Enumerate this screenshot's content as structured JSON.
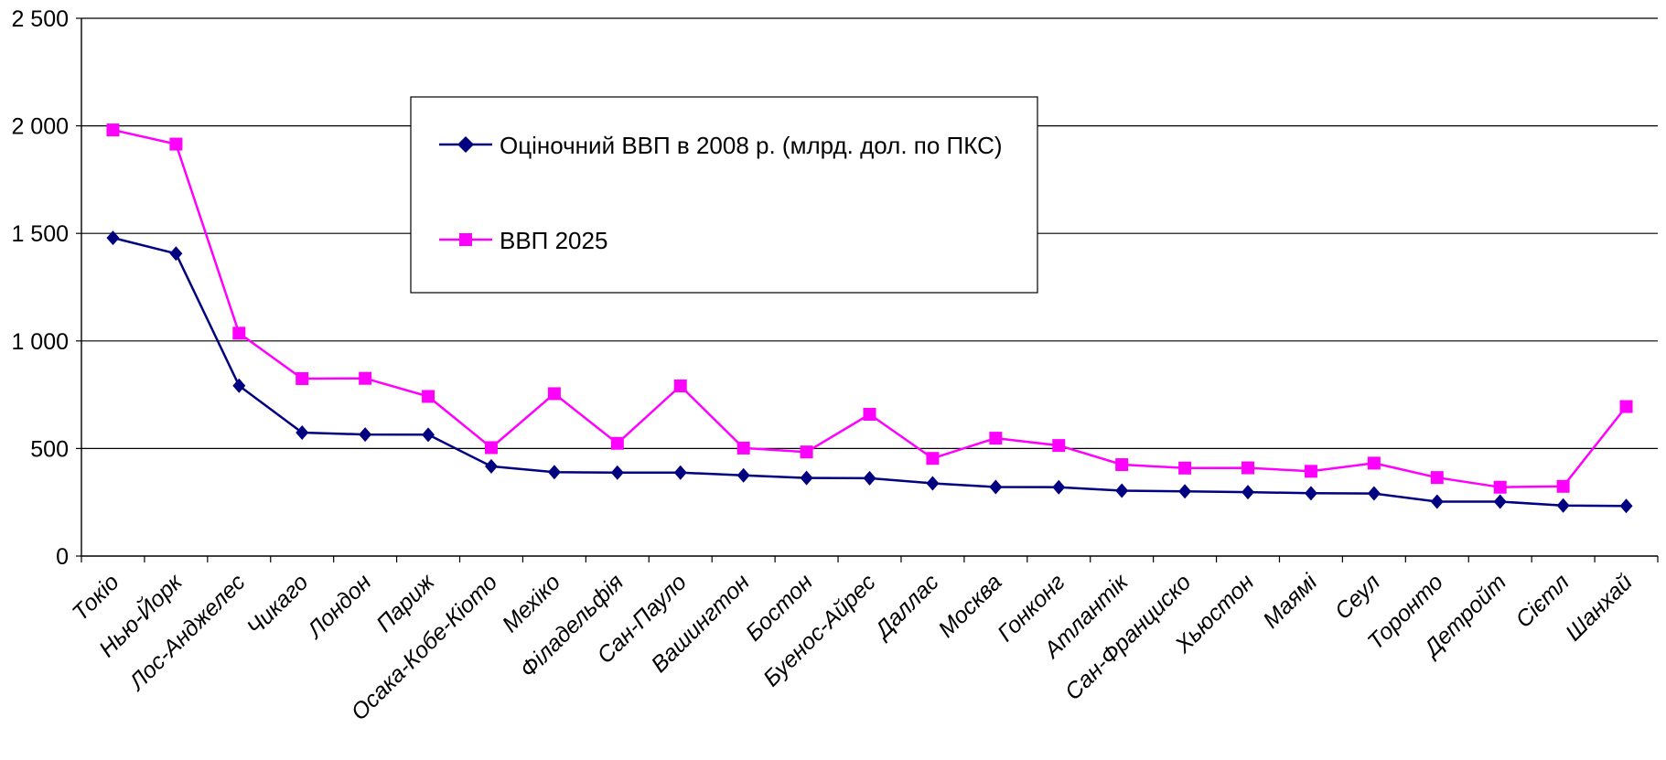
{
  "chart_data": {
    "type": "line",
    "categories": [
      "Токіо",
      "Нью-Йорк",
      "Лос-Анджелес",
      "Чикаго",
      "Лондон",
      "Париж",
      "Осака-Кобе-Кіото",
      "Мехіко",
      "Філадельфія",
      "Сан-Пауло",
      "Вашингтон",
      "Бостон",
      "Буенос-Айрес",
      "Даллас",
      "Москва",
      "Гонконг",
      "Атлантік",
      "Сан-Франциско",
      "Хьюстон",
      "Маямі",
      "Сеул",
      "Торонто",
      "Детройт",
      "Сієтл",
      "Шанхай"
    ],
    "series": [
      {
        "name": "Оціночний ВВП в 2008 р. (млрд. дол. по ПКС)",
        "color": "#000080",
        "marker": "diamond",
        "values": [
          1479,
          1406,
          792,
          574,
          565,
          564,
          417,
          390,
          388,
          388,
          375,
          363,
          362,
          338,
          321,
          320,
          304,
          301,
          297,
          292,
          291,
          253,
          253,
          235,
          233
        ]
      },
      {
        "name": "ВВП 2025",
        "color": "#ff00ff",
        "marker": "square",
        "values": [
          1981,
          1915,
          1036,
          825,
          826,
          742,
          504,
          755,
          524,
          791,
          502,
          484,
          659,
          454,
          548,
          514,
          425,
          409,
          410,
          394,
          432,
          365,
          320,
          324,
          695
        ]
      }
    ],
    "yaxis": {
      "min": 0,
      "max": 2500,
      "ticks": [
        0,
        500,
        1000,
        1500,
        2000,
        2500
      ],
      "tick_labels": [
        "0",
        "500",
        "1 000",
        "1 500",
        "2 000",
        "2 500"
      ]
    },
    "grid": true,
    "legend_position": "top-center"
  }
}
